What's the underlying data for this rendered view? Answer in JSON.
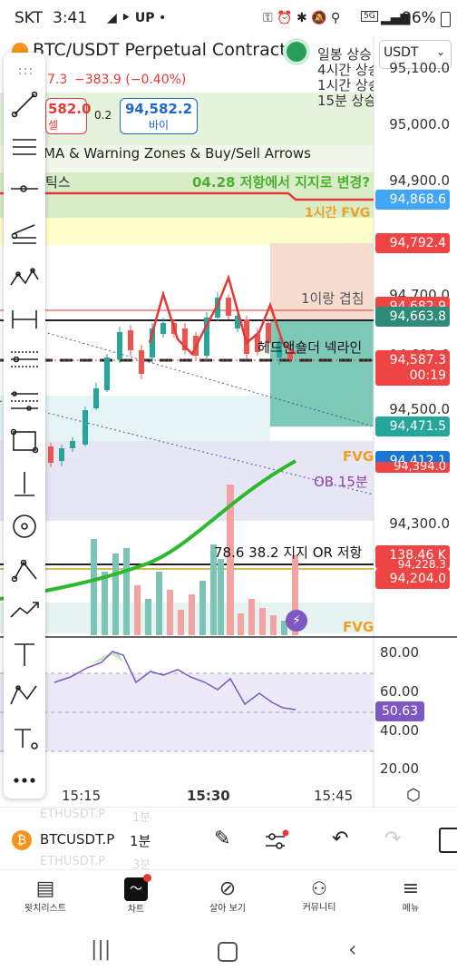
{
  "status": {
    "carrier": "SKT",
    "time": "3:41",
    "battery": "96%",
    "network": "5G"
  },
  "header": {
    "symbol_title": "BTC/USDT Perpetual Contract",
    "currency": "USDT",
    "last_partial": "7.3",
    "change": "−383.9 (−0.40%)",
    "sell_price": "582.0",
    "sell_label": "셀",
    "spread": "0.2",
    "buy_price": "94,582.2",
    "buy_label": "바이",
    "indicator_name": "MA & Warning Zones & Buy/Sell Arrows",
    "indicator_short": "틱스"
  },
  "legend_right": [
    "일봉 상승",
    "4시간 상승",
    "1시간 상승",
    "15분 상승"
  ],
  "annotations": {
    "support_change": "04.28 저항에서 지지로 변경?",
    "fvg_1h": "1시간 FVG",
    "overlap_1": "1이랑 겹침",
    "neckline": "헤드앤숄더 넥라인",
    "fvg_a": "FVG",
    "ob_15m": "OB 15분",
    "fib_note": "78.6 38.2 지지 OR 저항",
    "fvg_b": "FVG"
  },
  "price_axis": [
    "95,100.0",
    "95,000.0",
    "94,900.0",
    "94,700.0",
    "94,600.0",
    "94,500.0",
    "94,300.0"
  ],
  "price_tags": [
    {
      "value": "94,868.6",
      "color": "#42a5f5"
    },
    {
      "value": "94,792.4",
      "color": "#ef4444"
    },
    {
      "value": "94,682.9",
      "color": "#ef4444"
    },
    {
      "value": "94,663.8",
      "color": "#2e8b7a"
    },
    {
      "value": "94,587.3",
      "color": "#ef4444"
    },
    {
      "value": "00:19",
      "color": "#ef4444"
    },
    {
      "value": "94,471.5",
      "color": "#26a69a"
    },
    {
      "value": "94,412.1",
      "color": "#1976d2"
    },
    {
      "value": "94,394.0",
      "color": "#ef4444"
    },
    {
      "value": "138.46 K",
      "color": "#ef4444"
    },
    {
      "value": "94,228.3",
      "color": "#ef4444"
    },
    {
      "value": "94,204.0",
      "color": "#ef4444"
    }
  ],
  "rsi_axis": [
    "80.00",
    "60.00",
    "40.00",
    "20.00"
  ],
  "rsi_value": "50.63",
  "time_axis": [
    "15:15",
    "15:30",
    "15:45"
  ],
  "bottom_toolbar": {
    "symbol": "BTCUSDT.P",
    "interval": "1분",
    "ghost_1": "ETHUSDT.P",
    "ghost_1b": "1분",
    "ghost_2": "ETHUSDT.P",
    "ghost_2b": "3분"
  },
  "bottom_nav": [
    "왓치리스트",
    "차트",
    "살아 보기",
    "커뮤니티",
    "메뉴"
  ]
}
